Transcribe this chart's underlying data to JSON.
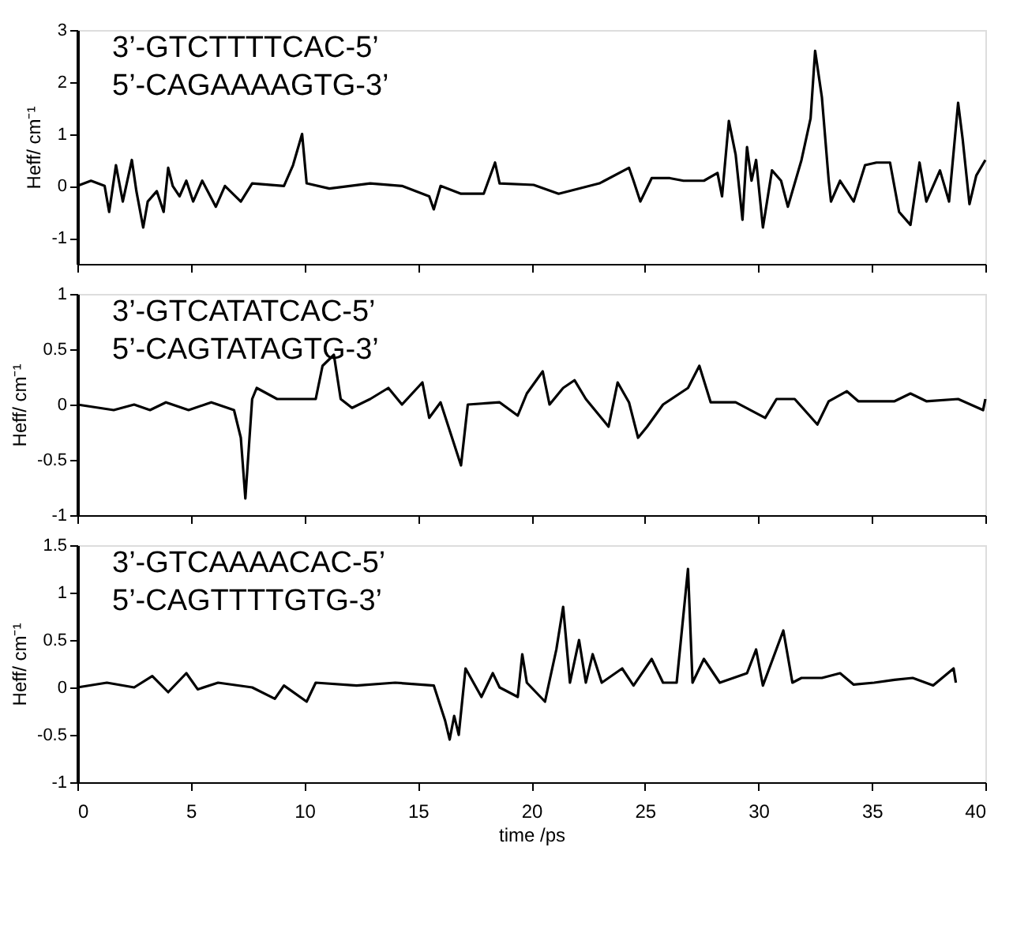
{
  "chart_data": [
    {
      "type": "line",
      "annotations": [
        "3’-GTCTTTTCAC-5’",
        "5’-CAGAAAAGTG-3’"
      ],
      "ylabel": "Heff/ cm⁻¹",
      "xlim": [
        0,
        40
      ],
      "xticks": [
        0,
        5,
        10,
        15,
        20,
        25,
        30,
        35,
        40
      ],
      "ylim": [
        -1.5,
        3
      ],
      "yticks": [
        -1,
        0,
        1,
        2,
        3
      ],
      "tick_labels": "y",
      "grid": false,
      "marker": "none",
      "line_style": "solid",
      "series": [
        {
          "color": "#000000",
          "x": [
            0,
            0.6,
            1.2,
            1.4,
            1.7,
            2.0,
            2.4,
            2.6,
            2.9,
            3.1,
            3.5,
            3.8,
            4.0,
            4.2,
            4.5,
            4.8,
            5.1,
            5.5,
            6.1,
            6.5,
            7.2,
            7.7,
            9.1,
            9.5,
            9.9,
            10.1,
            11.1,
            12.9,
            14.3,
            15.5,
            15.7,
            16.0,
            16.9,
            17.9,
            18.4,
            18.6,
            20.1,
            21.2,
            23.0,
            24.3,
            24.5,
            24.8,
            25.3,
            26.1,
            26.7,
            27.6,
            28.2,
            28.4,
            28.7,
            29.0,
            29.3,
            29.5,
            29.7,
            29.9,
            30.2,
            30.6,
            31.0,
            31.3,
            31.9,
            32.3,
            32.5,
            32.8,
            33.1,
            33.2,
            33.6,
            34.2,
            34.7,
            35.2,
            35.8,
            36.2,
            36.7,
            37.1,
            37.4,
            38.0,
            38.4,
            38.8,
            39.0,
            39.3,
            39.6,
            40
          ],
          "values": [
            0,
            0.1,
            0,
            -0.5,
            0.4,
            -0.3,
            0.5,
            -0.1,
            -0.8,
            -0.3,
            -0.1,
            -0.5,
            0.35,
            0,
            -0.2,
            0.1,
            -0.3,
            0.1,
            -0.4,
            0,
            -0.3,
            0.05,
            0,
            0.4,
            1.0,
            0.05,
            -0.05,
            0.05,
            0,
            -0.2,
            -0.45,
            0,
            -0.15,
            -0.15,
            0.45,
            0.05,
            0.02,
            -0.15,
            0.05,
            0.35,
            0.1,
            -0.3,
            0.15,
            0.15,
            0.1,
            0.1,
            0.25,
            -0.2,
            1.25,
            0.6,
            -0.65,
            0.75,
            0.1,
            0.5,
            -0.8,
            0.3,
            0.1,
            -0.4,
            0.5,
            1.3,
            2.6,
            1.7,
            0.1,
            -0.3,
            0.1,
            -0.3,
            0.4,
            0.45,
            0.45,
            -0.5,
            -0.75,
            0.45,
            -0.3,
            0.3,
            -0.3,
            1.6,
            0.9,
            -0.35,
            0.2,
            0.5
          ]
        }
      ]
    },
    {
      "type": "line",
      "annotations": [
        "3’-GTCATATCAC-5’",
        "5’-CAGTATAGTG-3’"
      ],
      "ylabel": "Heff/ cm⁻¹",
      "xlim": [
        0,
        40
      ],
      "xticks": [
        0,
        5,
        10,
        15,
        20,
        25,
        30,
        35,
        40
      ],
      "ylim": [
        -1,
        1
      ],
      "yticks": [
        -1,
        -0.5,
        0,
        0.5,
        1
      ],
      "tick_labels": "y",
      "grid": false,
      "marker": "none",
      "line_style": "solid",
      "series": [
        {
          "color": "#000000",
          "x": [
            0,
            1.6,
            2.5,
            3.2,
            3.9,
            4.9,
            5.9,
            6.9,
            7.2,
            7.4,
            7.7,
            7.9,
            8.8,
            9.7,
            10.5,
            10.8,
            11.3,
            11.6,
            12.1,
            12.9,
            13.7,
            14.3,
            15.2,
            15.5,
            16.0,
            16.9,
            17.2,
            18.6,
            19.4,
            19.8,
            20.5,
            20.8,
            21.4,
            21.9,
            22.4,
            23.4,
            23.8,
            24.3,
            24.7,
            25.1,
            25.8,
            26.9,
            27.4,
            27.9,
            29.0,
            30.3,
            30.8,
            31.6,
            32.6,
            33.1,
            33.9,
            34.4,
            36.0,
            36.7,
            37.4,
            38.8,
            39.9,
            40
          ],
          "values": [
            0,
            -0.05,
            0,
            -0.05,
            0.02,
            -0.05,
            0.02,
            -0.05,
            -0.3,
            -0.85,
            0.05,
            0.15,
            0.05,
            0.05,
            0.05,
            0.35,
            0.45,
            0.05,
            -0.03,
            0.05,
            0.15,
            0,
            0.2,
            -0.12,
            0.02,
            -0.55,
            0,
            0.02,
            -0.1,
            0.1,
            0.3,
            0,
            0.15,
            0.22,
            0.05,
            -0.2,
            0.2,
            0.02,
            -0.3,
            -0.2,
            0,
            0.15,
            0.35,
            0.02,
            0.02,
            -0.12,
            0.05,
            0.05,
            -0.18,
            0.03,
            0.12,
            0.03,
            0.03,
            0.1,
            0.03,
            0.05,
            -0.05,
            0.05
          ]
        }
      ]
    },
    {
      "type": "line",
      "annotations": [
        "3’-GTCAAAACAC-5’",
        "5’-CAGTTTTGTG-3’"
      ],
      "xlabel": "time /ps",
      "ylabel": "Heff/ cm⁻¹",
      "xlim": [
        0,
        40
      ],
      "xticks": [
        0,
        5,
        10,
        15,
        20,
        25,
        30,
        35,
        40
      ],
      "ylim": [
        -1,
        1.5
      ],
      "yticks": [
        -1,
        -0.5,
        0,
        0.5,
        1,
        1.5
      ],
      "grid": false,
      "marker": "none",
      "line_style": "solid",
      "series": [
        {
          "color": "#000000",
          "x": [
            0,
            1.3,
            2.5,
            3.3,
            4.0,
            4.8,
            5.3,
            6.2,
            7.7,
            8.7,
            9.1,
            10.1,
            10.5,
            12.3,
            14.0,
            15.7,
            16.2,
            16.4,
            16.6,
            16.8,
            17.1,
            17.8,
            18.3,
            18.6,
            19.4,
            19.6,
            19.8,
            20.6,
            21.1,
            21.4,
            21.7,
            22.1,
            22.4,
            22.7,
            23.1,
            24.0,
            24.5,
            25.3,
            25.8,
            26.4,
            26.9,
            27.1,
            27.6,
            28.3,
            29.5,
            29.9,
            30.2,
            31.1,
            31.5,
            31.9,
            32.8,
            33.6,
            34.2,
            35.1,
            36.0,
            36.8,
            37.7,
            38.6,
            38.7
          ],
          "values": [
            0,
            0.05,
            0,
            0.12,
            -0.05,
            0.15,
            -0.02,
            0.05,
            0,
            -0.12,
            0.02,
            -0.15,
            0.05,
            0.02,
            0.05,
            0.02,
            -0.35,
            -0.55,
            -0.3,
            -0.5,
            0.2,
            -0.1,
            0.15,
            0,
            -0.1,
            0.35,
            0.05,
            -0.15,
            0.4,
            0.85,
            0.05,
            0.5,
            0.05,
            0.35,
            0.05,
            0.2,
            0.02,
            0.3,
            0.05,
            0.05,
            1.25,
            0.05,
            0.3,
            0.05,
            0.15,
            0.4,
            0.02,
            0.6,
            0.05,
            0.1,
            0.1,
            0.15,
            0.03,
            0.05,
            0.08,
            0.1,
            0.02,
            0.2,
            0.05
          ]
        }
      ]
    }
  ]
}
